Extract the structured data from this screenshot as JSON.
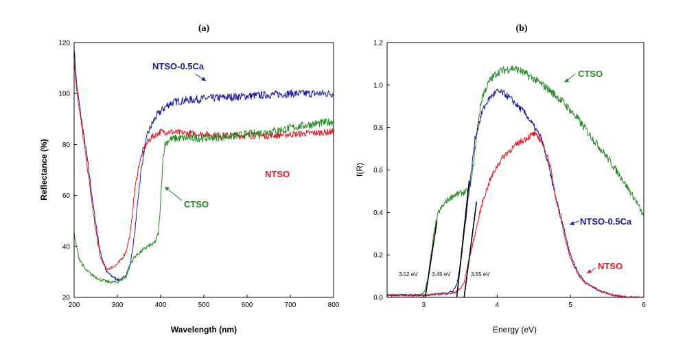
{
  "chart_data": [
    {
      "type": "line",
      "title": "(a)",
      "xlabel": "Wavelength (nm)",
      "ylabel": "Reflectance (%)",
      "xlim": [
        200,
        800
      ],
      "ylim": [
        20,
        120
      ],
      "xticks": [
        200,
        300,
        400,
        500,
        600,
        700,
        800
      ],
      "yticks": [
        20,
        40,
        60,
        80,
        100,
        120
      ],
      "series": [
        {
          "name": "NTSO-0.5Ca",
          "color": "#1a1aa8",
          "x": [
            200,
            205,
            215,
            230,
            245,
            260,
            275,
            290,
            300,
            310,
            320,
            330,
            340,
            350,
            360,
            370,
            380,
            390,
            400,
            420,
            440,
            470,
            500,
            550,
            600,
            650,
            700,
            750,
            800
          ],
          "y": [
            118,
            105,
            92,
            75,
            55,
            38,
            30,
            28,
            27,
            27,
            29,
            33,
            45,
            63,
            76,
            84,
            88,
            91,
            93,
            96,
            97,
            97.5,
            98,
            98.5,
            99,
            99.5,
            100,
            100,
            100
          ],
          "noise": 1.2
        },
        {
          "name": "NTSO",
          "color": "#e8141b",
          "x": [
            200,
            205,
            215,
            230,
            245,
            260,
            275,
            290,
            300,
            310,
            320,
            330,
            340,
            350,
            360,
            370,
            380,
            390,
            400,
            420,
            450,
            500,
            550,
            600,
            650,
            700,
            750,
            800
          ],
          "y": [
            113,
            103,
            90,
            72,
            52,
            36,
            31,
            32,
            33,
            35,
            38,
            45,
            62,
            72,
            78,
            81,
            83,
            84,
            85,
            85,
            84.5,
            84,
            83.5,
            83.5,
            83.5,
            84,
            84.5,
            85
          ],
          "noise": 1.0
        },
        {
          "name": "CTSO",
          "color": "#1f8a1f",
          "x": [
            200,
            210,
            225,
            240,
            260,
            280,
            300,
            320,
            330,
            340,
            355,
            370,
            385,
            395,
            400,
            405,
            410,
            420,
            440,
            470,
            500,
            550,
            600,
            650,
            700,
            750,
            800
          ],
          "y": [
            45,
            36,
            31,
            29,
            27,
            26,
            26,
            28,
            33,
            36,
            38,
            40,
            41,
            45,
            57,
            74,
            80,
            82,
            82.5,
            82.5,
            82.5,
            83,
            84,
            85,
            86.5,
            88,
            89
          ],
          "noise": 1.2
        }
      ],
      "labels": {
        "ntso_ca": "NTSO-0.5Ca",
        "ntso": "NTSO",
        "ctso": "CTSO"
      }
    },
    {
      "type": "line",
      "title": "(b)",
      "xlabel": "Energy (eV)",
      "ylabel": "f(R)",
      "xlim": [
        2.5,
        6
      ],
      "ylim": [
        0,
        1.2
      ],
      "xticks": [
        3,
        4,
        5,
        6
      ],
      "yticks": [
        0.0,
        0.2,
        0.4,
        0.6,
        0.8,
        1.0,
        1.2
      ],
      "ytick_labels": [
        "0.0",
        "0.2",
        "0.4",
        "0.6",
        "0.8",
        "1.0",
        "1.2"
      ],
      "series": [
        {
          "name": "CTSO",
          "color": "#1f8a1f",
          "x": [
            2.5,
            2.8,
            2.95,
            3.0,
            3.05,
            3.1,
            3.15,
            3.2,
            3.3,
            3.4,
            3.5,
            3.6,
            3.65,
            3.7,
            3.75,
            3.8,
            3.9,
            4.0,
            4.1,
            4.2,
            4.3,
            4.5,
            4.7,
            4.9,
            5.1,
            5.3,
            5.5,
            5.7,
            5.9,
            6.0
          ],
          "y": [
            0.01,
            0.01,
            0.01,
            0.02,
            0.08,
            0.2,
            0.33,
            0.4,
            0.45,
            0.48,
            0.49,
            0.5,
            0.55,
            0.7,
            0.85,
            0.95,
            1.02,
            1.06,
            1.07,
            1.08,
            1.07,
            1.03,
            0.98,
            0.92,
            0.84,
            0.75,
            0.66,
            0.56,
            0.45,
            0.38
          ],
          "noise": 0.015
        },
        {
          "name": "NTSO-0.5Ca",
          "color": "#1a1aa8",
          "x": [
            2.5,
            3.0,
            3.3,
            3.4,
            3.45,
            3.5,
            3.55,
            3.6,
            3.65,
            3.7,
            3.8,
            3.9,
            4.0,
            4.1,
            4.2,
            4.4,
            4.6,
            4.7,
            4.8,
            4.9,
            5.0,
            5.1,
            5.2,
            5.4,
            5.6,
            5.8,
            6.0
          ],
          "y": [
            0.01,
            0.01,
            0.02,
            0.03,
            0.06,
            0.15,
            0.3,
            0.45,
            0.6,
            0.75,
            0.88,
            0.94,
            0.97,
            0.96,
            0.93,
            0.86,
            0.75,
            0.62,
            0.47,
            0.34,
            0.2,
            0.12,
            0.07,
            0.03,
            0.01,
            0.0,
            0.0
          ],
          "noise": 0.012
        },
        {
          "name": "NTSO",
          "color": "#e8141b",
          "x": [
            2.5,
            3.0,
            3.4,
            3.5,
            3.55,
            3.6,
            3.7,
            3.8,
            3.9,
            4.0,
            4.1,
            4.2,
            4.3,
            4.4,
            4.5,
            4.6,
            4.7,
            4.75,
            4.8,
            4.9,
            5.0,
            5.1,
            5.2,
            5.4,
            5.6,
            5.8,
            6.0
          ],
          "y": [
            0.01,
            0.01,
            0.02,
            0.04,
            0.07,
            0.15,
            0.3,
            0.45,
            0.55,
            0.62,
            0.67,
            0.7,
            0.73,
            0.75,
            0.77,
            0.74,
            0.65,
            0.57,
            0.47,
            0.32,
            0.18,
            0.11,
            0.07,
            0.03,
            0.01,
            0.0,
            0.0
          ],
          "noise": 0.012
        }
      ],
      "tangents": [
        {
          "from": [
            3.02,
            0.0
          ],
          "to": [
            3.18,
            0.36
          ]
        },
        {
          "from": [
            3.45,
            0.0
          ],
          "to": [
            3.62,
            0.55
          ]
        },
        {
          "from": [
            3.55,
            0.0
          ],
          "to": [
            3.72,
            0.45
          ]
        }
      ],
      "annotations": [
        "3.02 eV",
        "3.45 eV",
        "3.55 eV"
      ],
      "labels": {
        "ctso": "CTSO",
        "ntso_ca": "NTSO-0.5Ca",
        "ntso": "NTSO"
      }
    }
  ]
}
